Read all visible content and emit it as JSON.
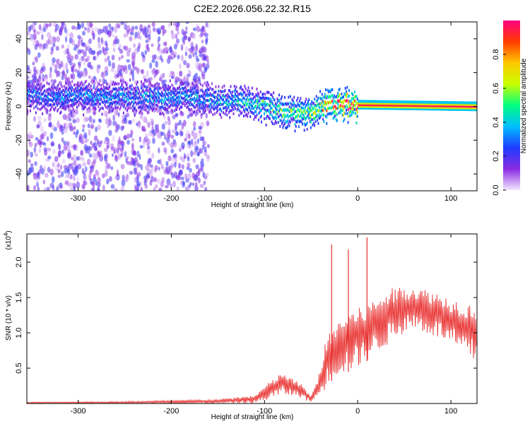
{
  "title": "C2E2.2026.056.22.32.R15",
  "chart_data": [
    {
      "type": "heatmap",
      "xlabel": "Height of straight line (km)",
      "ylabel": "Frequency (Hz)",
      "xlim": [
        -355,
        128
      ],
      "ylim": [
        -50,
        50
      ],
      "xticks": [
        -300,
        -200,
        -100,
        0,
        100
      ],
      "yticks": [
        -40,
        -20,
        0,
        20,
        40
      ],
      "colorbar": {
        "label": "Normalized spectral amplitude",
        "range": [
          0,
          1
        ],
        "ticks": [
          "0.0",
          "0.2",
          "0.4",
          "0.6",
          "0.8"
        ],
        "colormap": [
          "#f4e6ff",
          "#8a2be2",
          "#1e3cff",
          "#00bfff",
          "#00ff80",
          "#c8ff00",
          "#ffc800",
          "#ff3c00",
          "#ff0080"
        ]
      },
      "features": [
        {
          "name": "scattered noise",
          "x_range": [
            -355,
            -160
          ],
          "freq_range": [
            -50,
            50
          ],
          "amplitude": 0.1
        },
        {
          "name": "carrier band",
          "x_range": [
            -355,
            128
          ],
          "center_hz": [
            [
              -355,
              6
            ],
            [
              -200,
              5
            ],
            [
              -160,
              4
            ],
            [
              -120,
              3
            ],
            [
              -80,
              -3
            ],
            [
              -60,
              -5
            ],
            [
              -40,
              0
            ],
            [
              -20,
              1
            ],
            [
              0,
              1
            ],
            [
              128,
              0
            ]
          ],
          "amplitude": [
            [
              -355,
              0.3
            ],
            [
              -160,
              0.35
            ],
            [
              -100,
              0.45
            ],
            [
              -50,
              0.6
            ],
            [
              -20,
              0.8
            ],
            [
              0,
              0.95
            ],
            [
              128,
              0.98
            ]
          ]
        }
      ]
    },
    {
      "type": "line",
      "xlabel": "Height of straight line (km)",
      "ylabel": "SNR (10 * v/v)",
      "yscale_note": "(x10",
      "yscale_exp": "4",
      "xlim": [
        -355,
        128
      ],
      "ylim": [
        0,
        2.4
      ],
      "xticks": [
        -300,
        -200,
        -100,
        0,
        100
      ],
      "yticks": [
        "0.5",
        "1.0",
        "1.5",
        "2.0"
      ],
      "color": "#e8302f",
      "envelope": {
        "x": [
          -355,
          -250,
          -150,
          -110,
          -100,
          -90,
          -80,
          -70,
          -60,
          -55,
          -50,
          -42,
          -38,
          -35,
          -30,
          -20,
          -10,
          0,
          10,
          20,
          30,
          40,
          50,
          60,
          70,
          80,
          90,
          100,
          110,
          120,
          128
        ],
        "upper": [
          0.02,
          0.03,
          0.06,
          0.12,
          0.25,
          0.35,
          0.45,
          0.35,
          0.28,
          0.18,
          0.1,
          0.4,
          0.65,
          0.85,
          1.0,
          1.2,
          1.3,
          1.35,
          1.4,
          1.5,
          1.6,
          1.65,
          1.67,
          1.66,
          1.63,
          1.6,
          1.55,
          1.5,
          1.46,
          1.42,
          1.45
        ],
        "lower": [
          0.0,
          0.0,
          0.0,
          0.0,
          0.03,
          0.08,
          0.12,
          0.1,
          0.08,
          0.04,
          0.02,
          0.08,
          0.15,
          0.2,
          0.3,
          0.4,
          0.45,
          0.5,
          0.6,
          0.7,
          0.8,
          0.9,
          1.0,
          1.05,
          1.0,
          0.95,
          0.9,
          0.8,
          0.7,
          0.6,
          0.55
        ]
      },
      "spikes": [
        {
          "x": -28,
          "y": 2.25
        },
        {
          "x": -10,
          "y": 2.18
        },
        {
          "x": 10,
          "y": 2.35
        }
      ]
    }
  ]
}
